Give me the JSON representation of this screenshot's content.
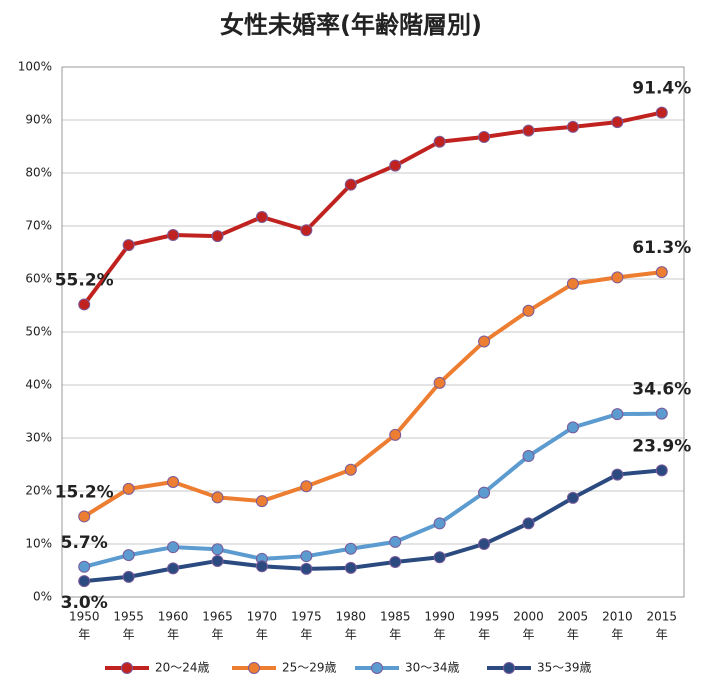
{
  "chart_data": {
    "type": "line",
    "title": "女性未婚率(年齢階層別)",
    "categories": [
      "1950",
      "1955",
      "1960",
      "1965",
      "1970",
      "1975",
      "1980",
      "1985",
      "1990",
      "1995",
      "2000",
      "2005",
      "2010",
      "2015"
    ],
    "category_suffix": "年",
    "ylim": [
      0,
      100
    ],
    "yticks": [
      {
        "value": 0,
        "label": "0%"
      },
      {
        "value": 10,
        "label": "10%"
      },
      {
        "value": 20,
        "label": "20%"
      },
      {
        "value": 30,
        "label": "30%"
      },
      {
        "value": 40,
        "label": "40%"
      },
      {
        "value": 50,
        "label": "50%"
      },
      {
        "value": 60,
        "label": "60%"
      },
      {
        "value": 70,
        "label": "70%"
      },
      {
        "value": 80,
        "label": "80%"
      },
      {
        "value": 90,
        "label": "90%"
      },
      {
        "value": 100,
        "label": "100%"
      }
    ],
    "grid": true,
    "legend": "bottom",
    "series": [
      {
        "name": "20～24歳",
        "color": "#c0231f",
        "values": [
          55.2,
          66.4,
          68.3,
          68.1,
          71.7,
          69.2,
          77.8,
          81.4,
          85.9,
          86.8,
          88.0,
          88.7,
          89.6,
          91.4
        ],
        "value_labels": [
          "55.2%",
          null,
          null,
          null,
          null,
          null,
          null,
          null,
          null,
          null,
          null,
          null,
          null,
          "91.4%"
        ]
      },
      {
        "name": "25～29歳",
        "color": "#ed7d31",
        "values": [
          15.2,
          20.4,
          21.7,
          18.8,
          18.1,
          20.9,
          24.0,
          30.6,
          40.4,
          48.2,
          54.0,
          59.1,
          60.3,
          61.3
        ],
        "value_labels": [
          "15.2%",
          null,
          null,
          null,
          null,
          null,
          null,
          null,
          null,
          null,
          null,
          null,
          null,
          "61.3%"
        ]
      },
      {
        "name": "30～34歳",
        "color": "#5b9bd0",
        "values": [
          5.7,
          7.9,
          9.4,
          9.0,
          7.2,
          7.7,
          9.1,
          10.4,
          13.9,
          19.7,
          26.6,
          32.0,
          34.5,
          34.6
        ],
        "value_labels": [
          "5.7%",
          null,
          null,
          null,
          null,
          null,
          null,
          null,
          null,
          null,
          null,
          null,
          null,
          "34.6%"
        ]
      },
      {
        "name": "35～39歳",
        "color": "#2b4a80",
        "values": [
          3.0,
          3.8,
          5.4,
          6.8,
          5.8,
          5.3,
          5.5,
          6.6,
          7.5,
          10.0,
          13.9,
          18.7,
          23.1,
          23.9
        ],
        "value_labels": [
          "3.0%",
          null,
          null,
          null,
          null,
          null,
          null,
          null,
          null,
          null,
          null,
          null,
          null,
          "23.9%"
        ]
      }
    ]
  }
}
